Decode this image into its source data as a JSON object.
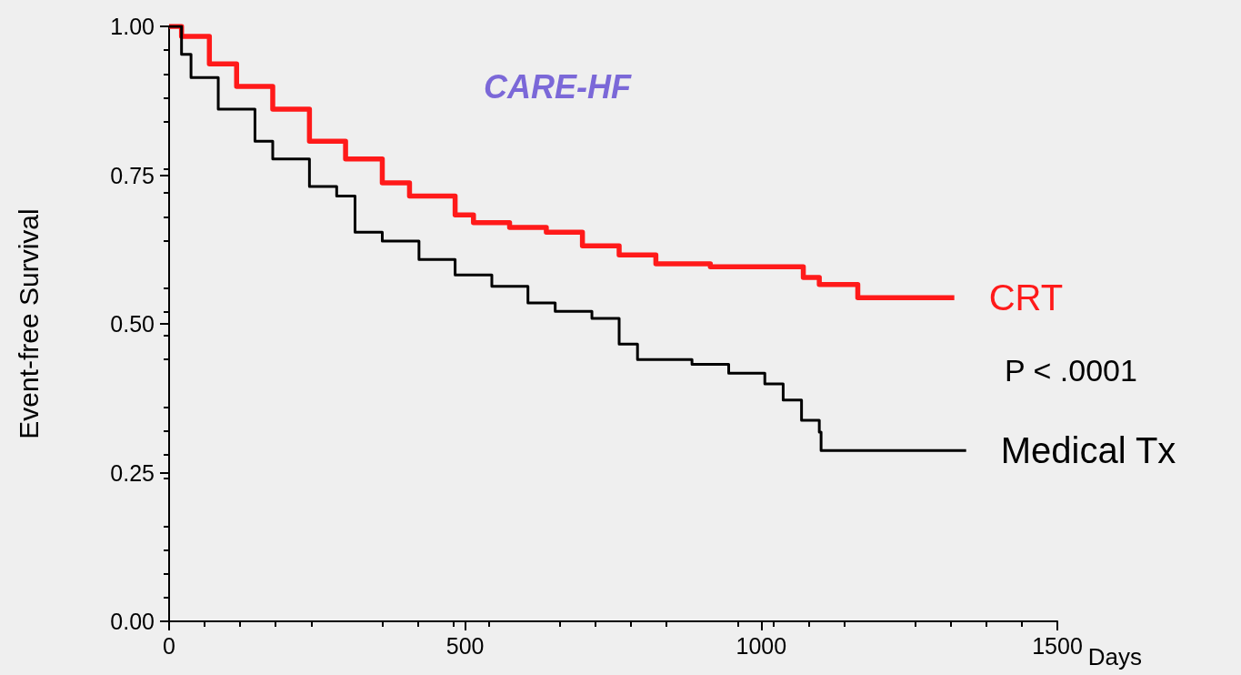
{
  "chart_data": {
    "type": "step",
    "title": "CARE-HF",
    "xlabel": "Days",
    "ylabel": "Event-free Survival",
    "annotations": [
      "P < .0001"
    ],
    "xlim": [
      0,
      1500
    ],
    "xticks": [
      0,
      500,
      1000,
      1500
    ],
    "ylim": [
      0,
      1
    ],
    "yticks": [
      {
        "value": 0,
        "label": "0.00"
      },
      {
        "value": 0.25,
        "label": "0.25"
      },
      {
        "value": 0.5,
        "label": "0.50"
      },
      {
        "value": 0.75,
        "label": "0.75"
      },
      {
        "value": 1,
        "label": "1.00"
      }
    ],
    "grid": false,
    "legend": false,
    "marker": "none",
    "line_style": "solid",
    "series": [
      {
        "name": "CRT",
        "color": "#ff1a1a",
        "x": [
          0,
          21,
          68,
          114,
          175,
          237,
          298,
          360,
          406,
          483,
          514,
          575,
          637,
          698,
          760,
          822,
          914,
          1068,
          1071,
          1098,
          1160,
          1163,
          1326
        ],
        "values": [
          1.0,
          0.983,
          0.937,
          0.899,
          0.861,
          0.807,
          0.777,
          0.737,
          0.715,
          0.683,
          0.67,
          0.662,
          0.654,
          0.631,
          0.616,
          0.601,
          0.596,
          0.596,
          0.578,
          0.566,
          0.566,
          0.544,
          0.544
        ]
      },
      {
        "name": "Medical Tx",
        "color": "#000000",
        "x": [
          0,
          21,
          37,
          83,
          145,
          175,
          237,
          283,
          314,
          360,
          422,
          483,
          545,
          606,
          652,
          714,
          760,
          791,
          883,
          945,
          1006,
          1037,
          1068,
          1098,
          1101,
          1346
        ],
        "values": [
          1.0,
          0.953,
          0.914,
          0.861,
          0.807,
          0.777,
          0.731,
          0.715,
          0.654,
          0.639,
          0.608,
          0.582,
          0.563,
          0.535,
          0.521,
          0.509,
          0.466,
          0.44,
          0.432,
          0.417,
          0.399,
          0.372,
          0.338,
          0.318,
          0.287,
          0.287
        ]
      }
    ]
  }
}
